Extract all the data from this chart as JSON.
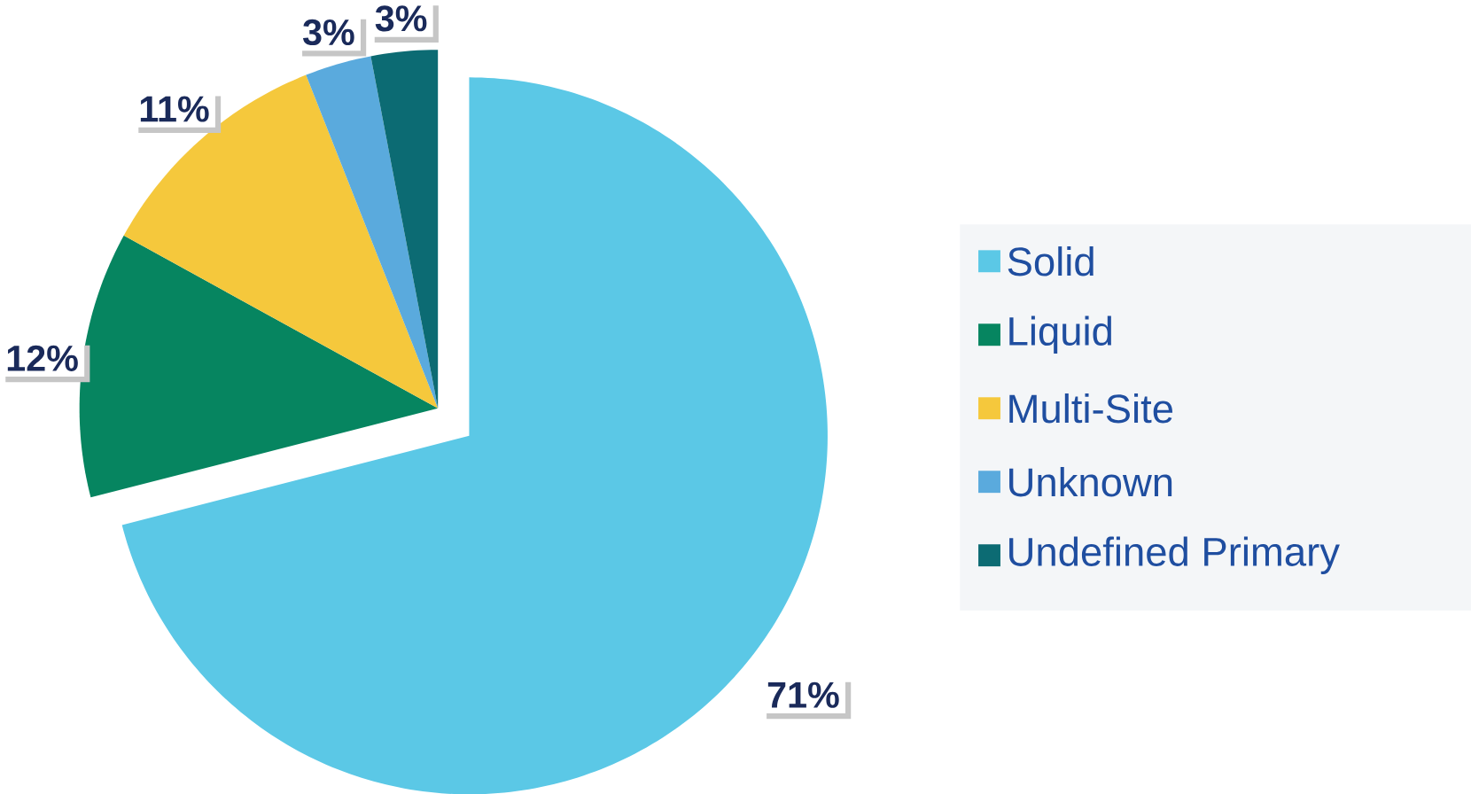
{
  "chart_data": {
    "type": "pie",
    "categories": [
      "Solid",
      "Liquid",
      "Multi-Site",
      "Unknown",
      "Undefined Primary"
    ],
    "values": [
      71,
      12,
      11,
      3,
      3
    ],
    "colors": [
      "#5bc8e6",
      "#068560",
      "#f5c83c",
      "#5aaadd",
      "#0c6b73"
    ],
    "value_labels": [
      "71%",
      "12%",
      "11%",
      "3%",
      "3%"
    ],
    "legend": "right"
  }
}
